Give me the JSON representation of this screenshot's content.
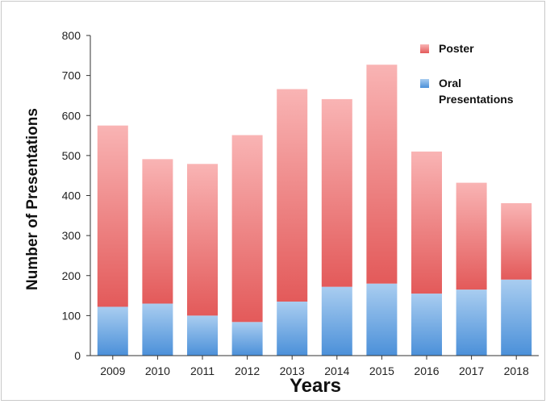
{
  "chart_data": {
    "type": "bar",
    "stacked": true,
    "categories": [
      "2009",
      "2010",
      "2011",
      "2012",
      "2013",
      "2014",
      "2015",
      "2016",
      "2017",
      "2018"
    ],
    "series": [
      {
        "name": "Oral Presentations",
        "values": [
          122,
          130,
          100,
          84,
          135,
          172,
          180,
          155,
          165,
          190
        ],
        "color_light": "#a9cdf0",
        "color_dark": "#4b90d9"
      },
      {
        "name": "Poster",
        "values": [
          453,
          361,
          379,
          467,
          531,
          469,
          547,
          355,
          267,
          191
        ],
        "color_light": "#f9b4b4",
        "color_dark": "#e35a5a"
      }
    ],
    "legend": {
      "items": [
        "Poster",
        "Oral Presentations"
      ],
      "position": "top-right"
    },
    "xlabel": "Years",
    "ylabel": "Number of Presentations",
    "ylim": [
      0,
      800
    ],
    "yticks": [
      0,
      100,
      200,
      300,
      400,
      500,
      600,
      700,
      800
    ],
    "grid": false
  }
}
